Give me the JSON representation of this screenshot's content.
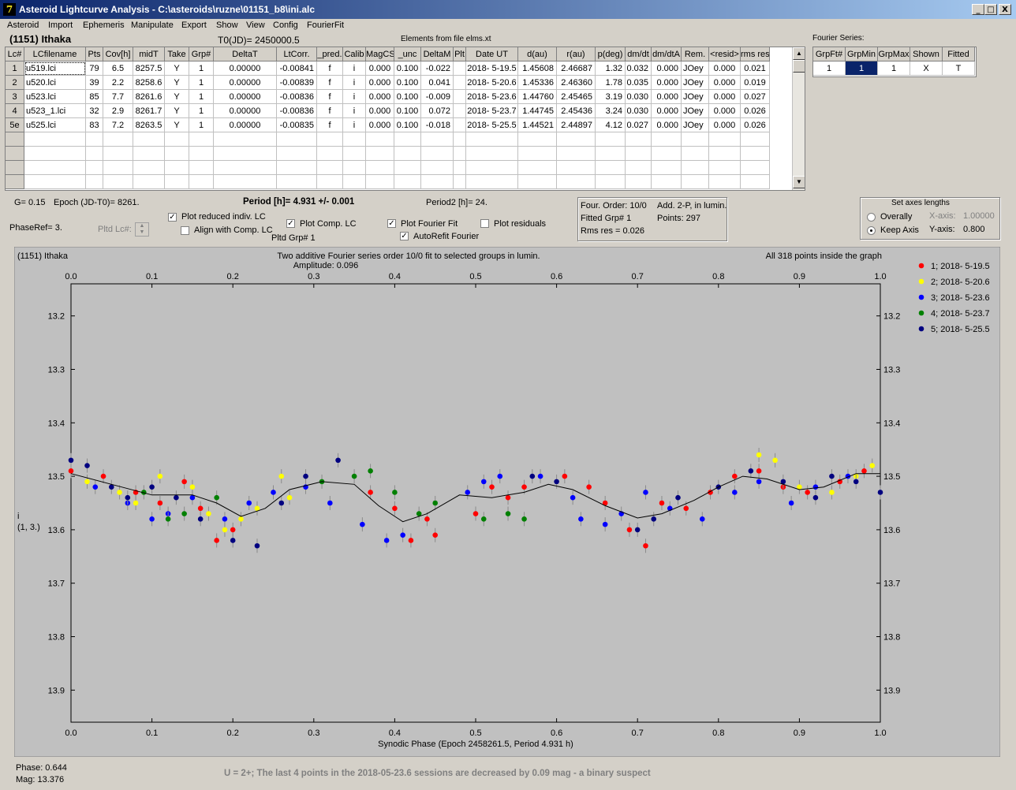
{
  "window": {
    "title": "Asteroid Lightcurve Analysis - C:\\asteroids\\ruzne\\01151_b8\\ini.alc",
    "icon": "app-logo-icon",
    "min_label": "_",
    "max_label": "□",
    "close_label": "X"
  },
  "menu": [
    "Asteroid",
    "Import",
    "Ephemeris",
    "Manipulate",
    "Export",
    "Show",
    "View",
    "Config",
    "FourierFit"
  ],
  "header": {
    "asteroid": "(1151) Ithaka",
    "t0": "T0(JD)= 2450000.5",
    "elements": "Elements from file elms.xt"
  },
  "lc_table": {
    "columns": [
      "Lc#",
      "LCfilename",
      "Pts",
      "Cov[h]",
      "midT",
      "Take",
      "Grp#",
      "DeltaT",
      "LtCorr.",
      "_pred.",
      "Calib",
      "MagCS",
      "_unc",
      "DeltaM",
      "Plt",
      "Date UT",
      "d(au)",
      "r(au)",
      "p(deg)",
      "dm/dt",
      "dm/dtA",
      "Rem.",
      "<resid>",
      "rms res"
    ],
    "rows": [
      [
        "1",
        "u519.lci",
        "79",
        "6.5",
        "8257.5",
        "Y",
        "1",
        "0.00000",
        "-0.00841",
        "f",
        "i",
        "0.000",
        "0.100",
        "-0.022",
        "",
        "2018- 5-19.5",
        "1.45608",
        "2.46687",
        "1.32",
        "0.032",
        "0.000",
        "JOey",
        "0.000",
        "0.021"
      ],
      [
        "2",
        "u520.lci",
        "39",
        "2.2",
        "8258.6",
        "Y",
        "1",
        "0.00000",
        "-0.00839",
        "f",
        "i",
        "0.000",
        "0.100",
        "0.041",
        "",
        "2018- 5-20.6",
        "1.45336",
        "2.46360",
        "1.78",
        "0.035",
        "0.000",
        "JOey",
        "0.000",
        "0.019"
      ],
      [
        "3",
        "u523.lci",
        "85",
        "7.7",
        "8261.6",
        "Y",
        "1",
        "0.00000",
        "-0.00836",
        "f",
        "i",
        "0.000",
        "0.100",
        "-0.009",
        "",
        "2018- 5-23.6",
        "1.44760",
        "2.45465",
        "3.19",
        "0.030",
        "0.000",
        "JOey",
        "0.000",
        "0.027"
      ],
      [
        "4",
        "u523_1.lci",
        "32",
        "2.9",
        "8261.7",
        "Y",
        "1",
        "0.00000",
        "-0.00836",
        "f",
        "i",
        "0.000",
        "0.100",
        "0.072",
        "",
        "2018- 5-23.7",
        "1.44745",
        "2.45436",
        "3.24",
        "0.030",
        "0.000",
        "JOey",
        "0.000",
        "0.026"
      ],
      [
        "5e",
        "u525.lci",
        "83",
        "7.2",
        "8263.5",
        "Y",
        "1",
        "0.00000",
        "-0.00835",
        "f",
        "i",
        "0.000",
        "0.100",
        "-0.018",
        "",
        "2018- 5-25.5",
        "1.44521",
        "2.44897",
        "4.12",
        "0.027",
        "0.000",
        "JOey",
        "0.000",
        "0.026"
      ]
    ]
  },
  "fourier_panel": {
    "title": "Fourier Series:",
    "columns": [
      "GrpFt#",
      "GrpMin",
      "GrpMax",
      "Shown",
      "Fitted"
    ],
    "row": [
      "1",
      "1",
      "1",
      "X",
      "T"
    ]
  },
  "controls": {
    "g": "G= 0.15",
    "epoch": "Epoch (JD-T0)= 8261.",
    "period": "Period [h]= 4.931 +/- 0.001",
    "period2": "Period2 [h]= 24.",
    "phase_ref": "PhaseRef= 3.",
    "pltd_lc": "Pltd Lc#:",
    "plot_reduced": "Plot reduced indiv. LC",
    "align_comp": "Align with Comp. LC",
    "plot_comp": "Plot Comp. LC",
    "pltd_grp": "Pltd Grp#  1",
    "plot_fourier": "Plot Fourier Fit",
    "autorefit": "AutoRefit Fourier",
    "plot_resid": "Plot residuals"
  },
  "fit_info": {
    "order": "Four. Order: 10/0",
    "add": "Add. 2-P, in lumin.",
    "fitted_grp": "Fitted Grp# 1",
    "points": "Points: 297",
    "rms": "Rms res     = 0.026"
  },
  "axes_box": {
    "title": "Set axes lengths",
    "overally": "Overally",
    "keep_axis": "Keep Axis",
    "xaxis_label": "X-axis:",
    "xaxis_value": "1.00000",
    "yaxis_label": "Y-axis:",
    "yaxis_value": "0.800"
  },
  "chart_data": {
    "type": "scatter",
    "asteroid_label": "(1151) Ithaka",
    "title": "Two additive Fourier series order 10/0 fit to selected groups in lumin.",
    "subtitle": "Amplitude: 0.096",
    "inside_note": "All 318 points inside the graph",
    "xlabel": "Synodic Phase (Epoch 2458261.5, Period 4.931 h)",
    "ylabel_lines": [
      "i",
      "(1, 3.)"
    ],
    "xlim": [
      0,
      1
    ],
    "ylim": [
      13.96,
      13.14
    ],
    "x_ticks": [
      "0.0",
      "0.1",
      "0.2",
      "0.3",
      "0.4",
      "0.5",
      "0.6",
      "0.7",
      "0.8",
      "0.9",
      "1.0"
    ],
    "y_ticks": [
      "13.2",
      "13.3",
      "13.4",
      "13.5",
      "13.6",
      "13.7",
      "13.8",
      "13.9"
    ],
    "legend_position": "right",
    "series": [
      {
        "name": "1; 2018- 5-19.5",
        "color": "#ff0000",
        "points": [
          [
            0.0,
            13.49
          ],
          [
            0.04,
            13.5
          ],
          [
            0.08,
            13.53
          ],
          [
            0.11,
            13.55
          ],
          [
            0.14,
            13.51
          ],
          [
            0.16,
            13.56
          ],
          [
            0.18,
            13.62
          ],
          [
            0.2,
            13.6
          ],
          [
            0.37,
            13.53
          ],
          [
            0.4,
            13.56
          ],
          [
            0.42,
            13.62
          ],
          [
            0.44,
            13.58
          ],
          [
            0.45,
            13.61
          ],
          [
            0.5,
            13.57
          ],
          [
            0.52,
            13.52
          ],
          [
            0.54,
            13.54
          ],
          [
            0.56,
            13.52
          ],
          [
            0.61,
            13.5
          ],
          [
            0.64,
            13.52
          ],
          [
            0.66,
            13.55
          ],
          [
            0.69,
            13.6
          ],
          [
            0.71,
            13.63
          ],
          [
            0.73,
            13.55
          ],
          [
            0.76,
            13.56
          ],
          [
            0.79,
            13.53
          ],
          [
            0.82,
            13.5
          ],
          [
            0.85,
            13.49
          ],
          [
            0.88,
            13.52
          ],
          [
            0.91,
            13.53
          ],
          [
            0.95,
            13.51
          ],
          [
            0.98,
            13.49
          ]
        ]
      },
      {
        "name": "2; 2018- 5-20.6",
        "color": "#ffff00",
        "points": [
          [
            0.02,
            13.51
          ],
          [
            0.06,
            13.53
          ],
          [
            0.08,
            13.55
          ],
          [
            0.11,
            13.5
          ],
          [
            0.15,
            13.52
          ],
          [
            0.17,
            13.57
          ],
          [
            0.19,
            13.6
          ],
          [
            0.21,
            13.58
          ],
          [
            0.23,
            13.56
          ],
          [
            0.26,
            13.5
          ],
          [
            0.27,
            13.54
          ],
          [
            0.85,
            13.46
          ],
          [
            0.87,
            13.47
          ],
          [
            0.9,
            13.52
          ],
          [
            0.94,
            13.53
          ],
          [
            0.97,
            13.5
          ],
          [
            0.99,
            13.48
          ]
        ]
      },
      {
        "name": "3; 2018- 5-23.6",
        "color": "#0000ff",
        "points": [
          [
            0.03,
            13.52
          ],
          [
            0.07,
            13.55
          ],
          [
            0.1,
            13.58
          ],
          [
            0.12,
            13.57
          ],
          [
            0.15,
            13.54
          ],
          [
            0.19,
            13.58
          ],
          [
            0.22,
            13.55
          ],
          [
            0.25,
            13.53
          ],
          [
            0.29,
            13.52
          ],
          [
            0.32,
            13.55
          ],
          [
            0.36,
            13.59
          ],
          [
            0.39,
            13.62
          ],
          [
            0.41,
            13.61
          ],
          [
            0.49,
            13.53
          ],
          [
            0.51,
            13.51
          ],
          [
            0.53,
            13.5
          ],
          [
            0.58,
            13.5
          ],
          [
            0.62,
            13.54
          ],
          [
            0.63,
            13.58
          ],
          [
            0.66,
            13.59
          ],
          [
            0.68,
            13.57
          ],
          [
            0.71,
            13.53
          ],
          [
            0.74,
            13.56
          ],
          [
            0.78,
            13.58
          ],
          [
            0.82,
            13.53
          ],
          [
            0.85,
            13.51
          ],
          [
            0.89,
            13.55
          ],
          [
            0.92,
            13.52
          ],
          [
            0.96,
            13.5
          ]
        ]
      },
      {
        "name": "4; 2018- 5-23.7",
        "color": "#008000",
        "points": [
          [
            0.09,
            13.53
          ],
          [
            0.12,
            13.58
          ],
          [
            0.14,
            13.57
          ],
          [
            0.18,
            13.54
          ],
          [
            0.31,
            13.51
          ],
          [
            0.35,
            13.5
          ],
          [
            0.37,
            13.49
          ],
          [
            0.4,
            13.53
          ],
          [
            0.43,
            13.57
          ],
          [
            0.45,
            13.55
          ],
          [
            0.51,
            13.58
          ],
          [
            0.54,
            13.57
          ],
          [
            0.56,
            13.58
          ]
        ]
      },
      {
        "name": "5; 2018- 5-25.5",
        "color": "#000080",
        "points": [
          [
            0.0,
            13.47
          ],
          [
            0.02,
            13.48
          ],
          [
            0.05,
            13.52
          ],
          [
            0.07,
            13.54
          ],
          [
            0.1,
            13.52
          ],
          [
            0.13,
            13.54
          ],
          [
            0.16,
            13.58
          ],
          [
            0.2,
            13.62
          ],
          [
            0.23,
            13.63
          ],
          [
            0.26,
            13.55
          ],
          [
            0.29,
            13.5
          ],
          [
            0.33,
            13.47
          ],
          [
            0.57,
            13.5
          ],
          [
            0.6,
            13.51
          ],
          [
            0.7,
            13.6
          ],
          [
            0.72,
            13.58
          ],
          [
            0.75,
            13.54
          ],
          [
            0.8,
            13.52
          ],
          [
            0.84,
            13.49
          ],
          [
            0.88,
            13.51
          ],
          [
            0.92,
            13.54
          ],
          [
            0.94,
            13.5
          ],
          [
            0.97,
            13.51
          ],
          [
            1.0,
            13.53
          ]
        ]
      }
    ],
    "fit_curve": [
      [
        0.0,
        13.495
      ],
      [
        0.05,
        13.515
      ],
      [
        0.1,
        13.535
      ],
      [
        0.15,
        13.535
      ],
      [
        0.18,
        13.55
      ],
      [
        0.21,
        13.575
      ],
      [
        0.24,
        13.56
      ],
      [
        0.27,
        13.525
      ],
      [
        0.31,
        13.51
      ],
      [
        0.35,
        13.515
      ],
      [
        0.38,
        13.555
      ],
      [
        0.41,
        13.585
      ],
      [
        0.44,
        13.57
      ],
      [
        0.48,
        13.535
      ],
      [
        0.52,
        13.54
      ],
      [
        0.56,
        13.53
      ],
      [
        0.59,
        13.515
      ],
      [
        0.62,
        13.525
      ],
      [
        0.66,
        13.555
      ],
      [
        0.7,
        13.578
      ],
      [
        0.73,
        13.57
      ],
      [
        0.77,
        13.545
      ],
      [
        0.8,
        13.52
      ],
      [
        0.83,
        13.5
      ],
      [
        0.86,
        13.505
      ],
      [
        0.9,
        13.525
      ],
      [
        0.93,
        13.52
      ],
      [
        0.97,
        13.495
      ],
      [
        1.0,
        13.495
      ]
    ]
  },
  "status": {
    "phase": "Phase:  0.644",
    "mag": "Mag:    13.376",
    "note": "U = 2+; The last 4 points in the 2018-05-23.6 sessions are decreased by 0.09 mag - a binary suspect"
  }
}
